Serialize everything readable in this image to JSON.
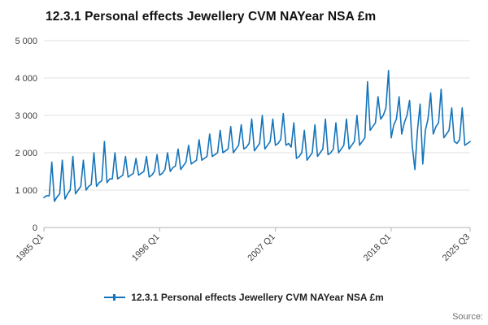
{
  "page": {
    "title": "12.3.1 Personal effects Jewellery CVM NAYear NSA £m",
    "source_label": "Source:"
  },
  "legend": {
    "label": "12.3.1 Personal effects Jewellery CVM NAYear NSA £m"
  },
  "colors": {
    "line": "#1574ba",
    "grid": "#e2e2e2",
    "axis": "#b3b3b3",
    "tick_label": "#414042"
  },
  "chart_data": {
    "type": "line",
    "title": "12.3.1 Personal effects Jewellery CVM NAYear NSA £m",
    "unit": "£m",
    "x_start": "1985 Q1",
    "x_end": "2025 Q3",
    "frequency": "quarterly",
    "ylim": [
      0,
      5000
    ],
    "grid": true,
    "legend_position": "bottom",
    "y_ticks": [
      {
        "value": 0,
        "label": "0"
      },
      {
        "value": 1000,
        "label": "1 000"
      },
      {
        "value": 2000,
        "label": "2 000"
      },
      {
        "value": 3000,
        "label": "3 000"
      },
      {
        "value": 4000,
        "label": "4 000"
      },
      {
        "value": 5000,
        "label": "5 000"
      }
    ],
    "x_ticks": [
      {
        "index": 0,
        "label": "1985 Q1"
      },
      {
        "index": 44,
        "label": "1996 Q1"
      },
      {
        "index": 88,
        "label": "2007 Q1"
      },
      {
        "index": 132,
        "label": "2018 Q1"
      },
      {
        "index": 162,
        "label": "2025 Q3"
      }
    ],
    "series": [
      {
        "name": "12.3.1 Personal effects Jewellery CVM NAYear NSA £m",
        "values": [
          800,
          850,
          850,
          1750,
          700,
          820,
          900,
          1800,
          760,
          900,
          1000,
          1900,
          900,
          1000,
          1100,
          1800,
          1000,
          1100,
          1150,
          2000,
          1100,
          1200,
          1250,
          2300,
          1200,
          1300,
          1300,
          2000,
          1300,
          1350,
          1400,
          1900,
          1350,
          1400,
          1450,
          1850,
          1400,
          1450,
          1500,
          1900,
          1350,
          1400,
          1500,
          1950,
          1400,
          1450,
          1550,
          2000,
          1500,
          1600,
          1650,
          2100,
          1550,
          1650,
          1750,
          2200,
          1700,
          1750,
          1800,
          2350,
          1800,
          1850,
          1900,
          2500,
          1900,
          1950,
          2000,
          2600,
          2000,
          2050,
          2100,
          2700,
          2000,
          2100,
          2200,
          2750,
          2100,
          2150,
          2250,
          2900,
          2050,
          2150,
          2250,
          3000,
          2100,
          2200,
          2300,
          2900,
          2200,
          2250,
          2350,
          3050,
          2200,
          2250,
          2150,
          2800,
          1850,
          1900,
          2000,
          2600,
          1800,
          1900,
          2000,
          2750,
          1900,
          2000,
          2100,
          2900,
          1950,
          2000,
          2100,
          2800,
          2000,
          2100,
          2200,
          2900,
          2100,
          2200,
          2300,
          3000,
          2200,
          2300,
          2400,
          3900,
          2600,
          2700,
          2800,
          3500,
          2900,
          3000,
          3200,
          4200,
          2400,
          2750,
          2900,
          3500,
          2500,
          2800,
          3000,
          3400,
          2200,
          1550,
          2600,
          3300,
          1700,
          2600,
          2900,
          3600,
          2500,
          2700,
          2800,
          3700,
          2400,
          2500,
          2600,
          3200,
          2300,
          2250,
          2350,
          3200,
          2200,
          2250,
          2300
        ]
      }
    ]
  }
}
